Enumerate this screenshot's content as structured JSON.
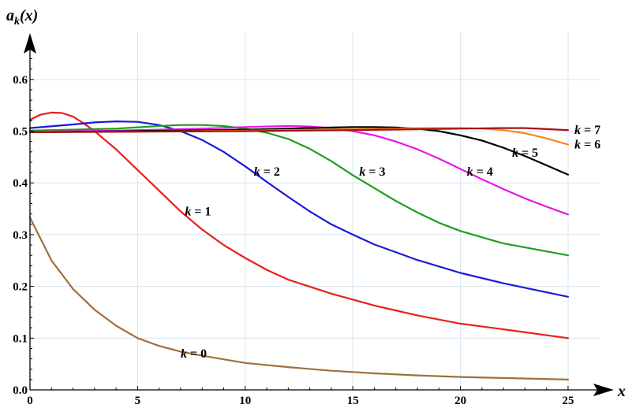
{
  "chart_data": {
    "type": "line",
    "title": "",
    "xlabel": "x",
    "ylabel": "a_k(x)",
    "ylabel_parts": {
      "base": "a",
      "sub": "k",
      "rest": "(x)"
    },
    "xlim": [
      0,
      25
    ],
    "ylim": [
      0,
      0.65
    ],
    "xticks": [
      0,
      5,
      10,
      15,
      20,
      25
    ],
    "yticks": [
      0.0,
      0.1,
      0.2,
      0.3,
      0.4,
      0.5,
      0.6
    ],
    "xtick_labels": [
      "0",
      "5",
      "10",
      "15",
      "20",
      "25"
    ],
    "ytick_labels": [
      "0.0",
      "0.1",
      "0.2",
      "0.3",
      "0.4",
      "0.5",
      "0.6"
    ],
    "grid": true,
    "series": [
      {
        "name": "k = 0",
        "color": "#a0703a",
        "x": [
          0,
          1,
          2,
          3,
          4,
          5,
          6,
          7,
          8,
          10,
          12,
          14,
          16,
          18,
          20,
          22,
          25
        ],
        "y": [
          0.333,
          0.25,
          0.195,
          0.155,
          0.124,
          0.1,
          0.085,
          0.074,
          0.066,
          0.052,
          0.044,
          0.037,
          0.032,
          0.028,
          0.025,
          0.023,
          0.02
        ]
      },
      {
        "name": "k = 1",
        "color": "#e8201b",
        "x": [
          0,
          0.5,
          1,
          1.5,
          2,
          2.5,
          3,
          4,
          5,
          6,
          7,
          8,
          9,
          10,
          11,
          12,
          14,
          16,
          18,
          20,
          22,
          25
        ],
        "y": [
          0.522,
          0.532,
          0.536,
          0.535,
          0.528,
          0.515,
          0.5,
          0.465,
          0.425,
          0.385,
          0.345,
          0.31,
          0.28,
          0.255,
          0.232,
          0.213,
          0.186,
          0.163,
          0.144,
          0.128,
          0.117,
          0.1
        ]
      },
      {
        "name": "k = 2",
        "color": "#1a1ad8",
        "x": [
          0,
          2,
          3,
          4,
          5,
          6,
          7,
          8,
          9,
          10,
          11,
          12,
          13,
          14,
          15,
          16,
          18,
          20,
          22,
          25
        ],
        "y": [
          0.506,
          0.513,
          0.517,
          0.519,
          0.518,
          0.512,
          0.5,
          0.483,
          0.46,
          0.432,
          0.402,
          0.373,
          0.345,
          0.32,
          0.3,
          0.281,
          0.251,
          0.226,
          0.206,
          0.18
        ]
      },
      {
        "name": "k = 3",
        "color": "#1e9e1e",
        "x": [
          0,
          4,
          6,
          7,
          8,
          9,
          10,
          11,
          12,
          13,
          14,
          15,
          16,
          17,
          18,
          19,
          20,
          22,
          25
        ],
        "y": [
          0.501,
          0.505,
          0.51,
          0.512,
          0.512,
          0.51,
          0.505,
          0.497,
          0.485,
          0.466,
          0.442,
          0.415,
          0.39,
          0.365,
          0.343,
          0.323,
          0.307,
          0.283,
          0.26
        ]
      },
      {
        "name": "k = 4",
        "color": "#e817e8",
        "x": [
          0,
          4,
          8,
          10,
          11,
          12,
          13,
          14,
          15,
          16,
          17,
          18,
          19,
          20,
          21,
          22,
          23,
          24,
          25
        ],
        "y": [
          0.499,
          0.501,
          0.505,
          0.508,
          0.509,
          0.51,
          0.509,
          0.506,
          0.5,
          0.492,
          0.48,
          0.465,
          0.447,
          0.427,
          0.407,
          0.388,
          0.37,
          0.354,
          0.339
        ]
      },
      {
        "name": "k = 5",
        "color": "#000000",
        "x": [
          0,
          5,
          10,
          12,
          14,
          15,
          16,
          17,
          18,
          19,
          20,
          21,
          22,
          23,
          24,
          25
        ],
        "y": [
          0.498,
          0.5,
          0.503,
          0.505,
          0.507,
          0.508,
          0.508,
          0.507,
          0.505,
          0.5,
          0.492,
          0.482,
          0.468,
          0.452,
          0.434,
          0.416
        ]
      },
      {
        "name": "k = 6",
        "color": "#f5861f",
        "x": [
          0,
          5,
          10,
          15,
          17,
          18,
          19,
          20,
          21,
          22,
          23,
          24,
          25
        ],
        "y": [
          0.498,
          0.499,
          0.501,
          0.504,
          0.505,
          0.506,
          0.506,
          0.506,
          0.505,
          0.502,
          0.496,
          0.486,
          0.474
        ]
      },
      {
        "name": "k = 7",
        "color": "#a31010",
        "x": [
          0,
          5,
          10,
          15,
          20,
          22,
          23,
          24,
          25
        ],
        "y": [
          0.498,
          0.499,
          0.5,
          0.502,
          0.505,
          0.506,
          0.506,
          0.504,
          0.502
        ]
      }
    ],
    "labels": [
      {
        "text": "k = 0",
        "x": 7.0,
        "y": 0.07
      },
      {
        "text": "k = 1",
        "x": 7.2,
        "y": 0.345
      },
      {
        "text": "k = 2",
        "x": 10.4,
        "y": 0.422
      },
      {
        "text": "k = 3",
        "x": 15.3,
        "y": 0.422
      },
      {
        "text": "k = 4",
        "x": 20.3,
        "y": 0.422
      },
      {
        "text": "k = 5",
        "x": 22.4,
        "y": 0.458
      },
      {
        "text": "k = 6",
        "x": 25.3,
        "y": 0.474
      },
      {
        "text": "k = 7",
        "x": 25.3,
        "y": 0.502
      }
    ]
  }
}
